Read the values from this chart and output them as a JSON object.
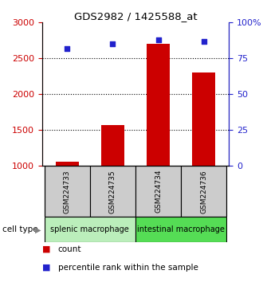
{
  "title": "GDS2982 / 1425588_at",
  "samples": [
    "GSM224733",
    "GSM224735",
    "GSM224734",
    "GSM224736"
  ],
  "counts": [
    1055,
    1570,
    2700,
    2300
  ],
  "percentiles": [
    82,
    85,
    88,
    87
  ],
  "ylim_left": [
    1000,
    3000
  ],
  "ylim_right": [
    0,
    100
  ],
  "yticks_left": [
    1000,
    1500,
    2000,
    2500,
    3000
  ],
  "yticks_right": [
    0,
    25,
    50,
    75,
    100
  ],
  "ytick_labels_right": [
    "0",
    "25",
    "50",
    "75",
    "100%"
  ],
  "bar_color": "#cc0000",
  "dot_color": "#2222cc",
  "grid_values": [
    1500,
    2000,
    2500
  ],
  "groups": [
    {
      "label": "splenic macrophage",
      "indices": [
        0,
        1
      ],
      "color": "#bbeebb"
    },
    {
      "label": "intestinal macrophage",
      "indices": [
        2,
        3
      ],
      "color": "#55dd55"
    }
  ],
  "sample_box_color": "#cccccc",
  "cell_type_label": "cell type",
  "legend_count": "count",
  "legend_percentile": "percentile rank within the sample",
  "bar_width": 0.5,
  "x_positions": [
    0,
    1,
    2,
    3
  ],
  "figsize": [
    3.3,
    3.54
  ],
  "dpi": 100
}
